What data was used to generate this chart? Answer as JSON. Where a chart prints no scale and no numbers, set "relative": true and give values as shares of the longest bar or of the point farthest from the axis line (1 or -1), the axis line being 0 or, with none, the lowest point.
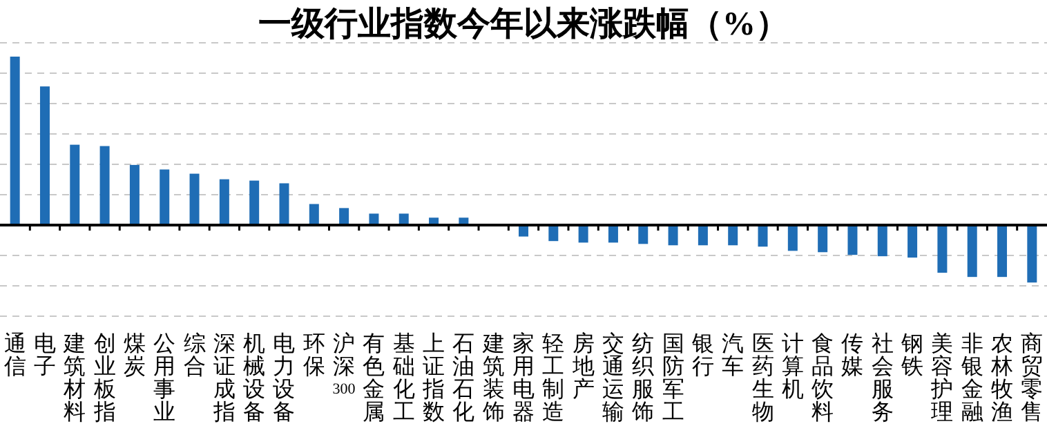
{
  "chart_data": {
    "type": "bar",
    "title": "一级行业指数今年以来涨跌幅（%）",
    "relative": true,
    "grid": "y",
    "categories": [
      "通信",
      "电子",
      "建筑材料",
      "创业板指",
      "煤炭",
      "公用事业",
      "综合",
      "深证成指",
      "机械设备",
      "电力设备",
      "环保",
      "沪深300",
      "有色金属",
      "基础化工",
      "上证指数",
      "石油石化",
      "建筑装饰",
      "家用电器",
      "轻工制造",
      "房地产",
      "交通运输",
      "纺织服饰",
      "国防军工",
      "银行",
      "汽车",
      "医药生物",
      "计算机",
      "食品饮料",
      "传媒",
      "社会服务",
      "钢铁",
      "美容护理",
      "非银金融",
      "农林牧渔",
      "商贸零售"
    ],
    "series": [
      {
        "color": "#1f6db5",
        "values": [
          1,
          0.823,
          0.477,
          0.469,
          0.357,
          0.33,
          0.305,
          0.272,
          0.264,
          0.248,
          0.125,
          0.101,
          0.068,
          0.068,
          0.044,
          0.044,
          0,
          -0.068,
          -0.095,
          -0.104,
          -0.104,
          -0.112,
          -0.12,
          -0.12,
          -0.12,
          -0.128,
          -0.153,
          -0.161,
          -0.177,
          -0.185,
          -0.193,
          -0.283,
          -0.308,
          -0.308,
          -0.341
        ]
      }
    ]
  }
}
